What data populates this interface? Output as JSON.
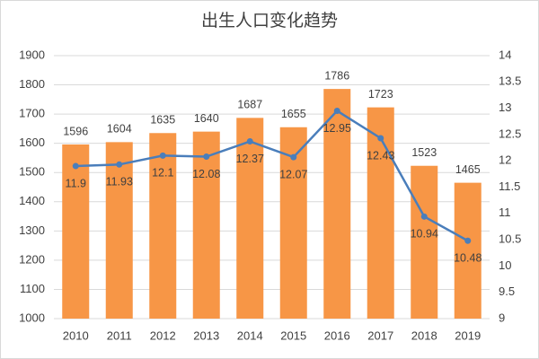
{
  "chart_data": {
    "type": "bar",
    "title": "出生人口变化趋势",
    "categories": [
      "2010",
      "2011",
      "2012",
      "2013",
      "2014",
      "2015",
      "2016",
      "2017",
      "2018",
      "2019"
    ],
    "series": [
      {
        "type": "bar",
        "color": "#f79646",
        "values": [
          1596,
          1604,
          1635,
          1640,
          1687,
          1655,
          1786,
          1723,
          1523,
          1465
        ]
      },
      {
        "type": "line",
        "axis": "y2",
        "color": "#4a7ebb",
        "values": [
          11.9,
          11.93,
          12.1,
          12.08,
          12.37,
          12.07,
          12.95,
          12.43,
          10.94,
          10.48
        ]
      }
    ],
    "ylim": [
      1000,
      1900
    ],
    "yticks": [
      1000,
      1100,
      1200,
      1300,
      1400,
      1500,
      1600,
      1700,
      1800,
      1900
    ],
    "y2lim": [
      9,
      14
    ],
    "y2ticks": [
      9,
      9.5,
      10,
      10.5,
      11,
      11.5,
      12,
      12.5,
      13,
      13.5,
      14
    ],
    "grid": true
  }
}
